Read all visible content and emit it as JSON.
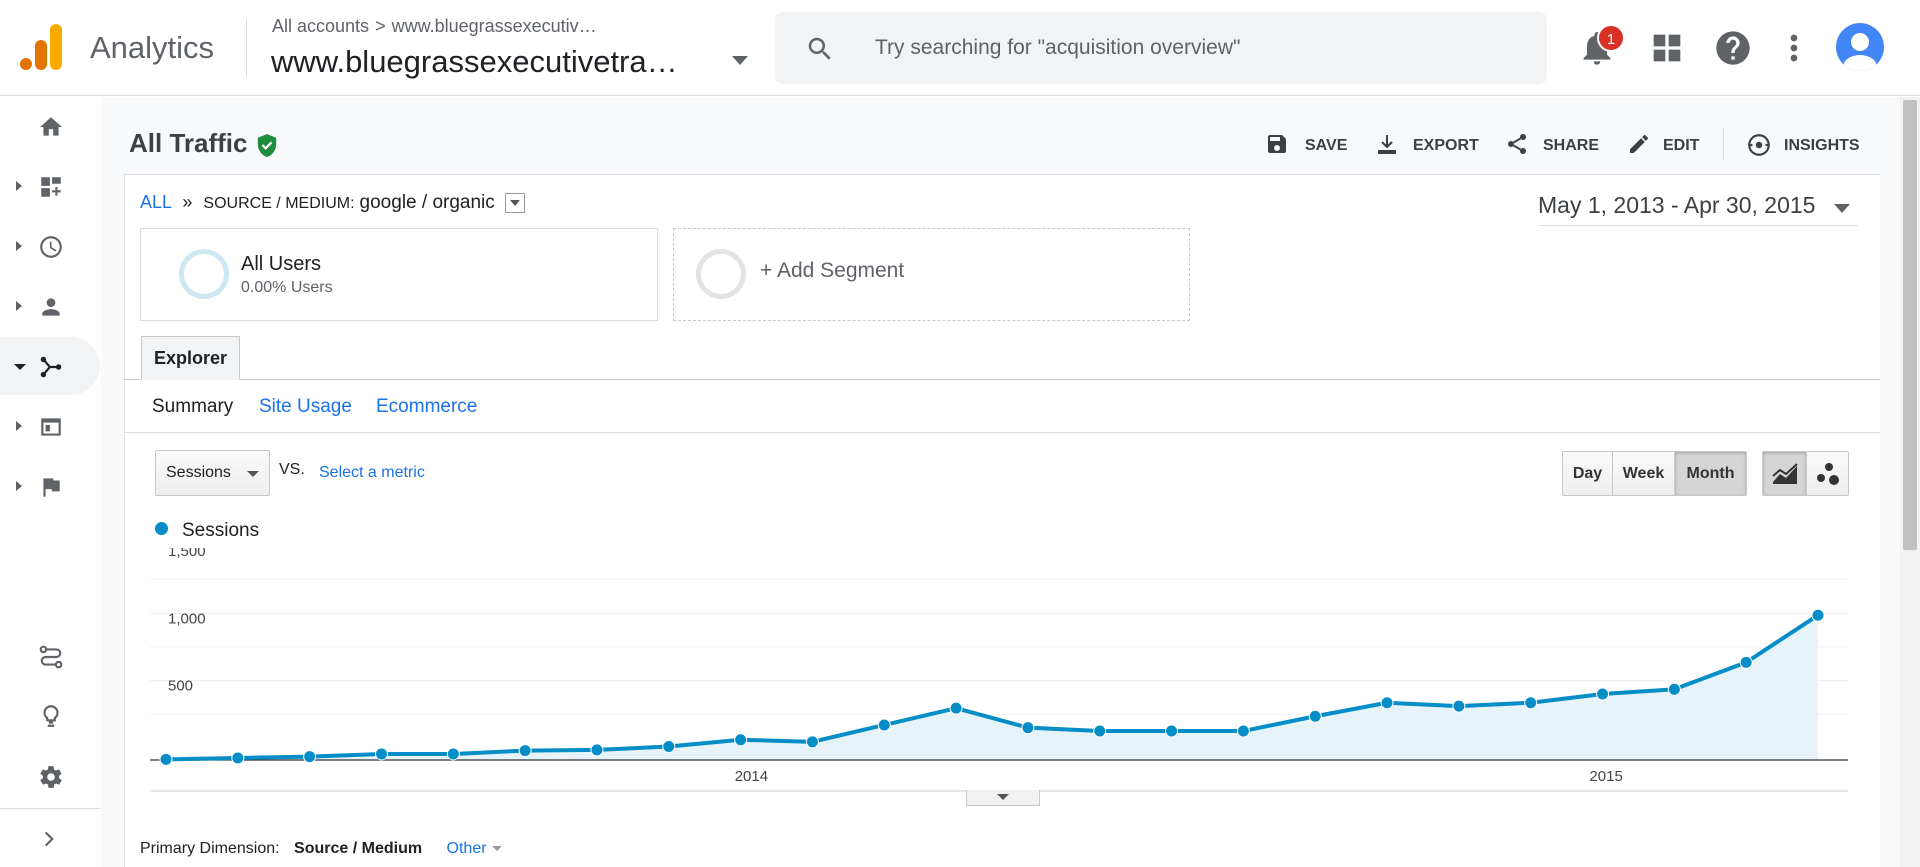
{
  "header": {
    "app_title": "Analytics",
    "breadcrumb_root": "All accounts",
    "breadcrumb_separator": ">",
    "breadcrumb_account": "www.bluegrassexecutiv…",
    "property_name": "www.bluegrassexecutivetra…",
    "search_placeholder": "Try searching for \"acquisition overview\"",
    "notification_count": "1",
    "icons": [
      "analytics-logo-icon",
      "search-icon",
      "bell-icon",
      "apps-grid-icon",
      "help-icon",
      "more-vert-icon",
      "account-avatar-icon"
    ]
  },
  "sidenav": {
    "items": [
      {
        "name": "home",
        "icon": "home-icon"
      },
      {
        "name": "customization",
        "icon": "dashboard-add-icon"
      },
      {
        "name": "realtime",
        "icon": "clock-icon"
      },
      {
        "name": "audience",
        "icon": "person-icon"
      },
      {
        "name": "acquisition",
        "icon": "acquisition-icon",
        "active": true
      },
      {
        "name": "behavior",
        "icon": "behavior-icon"
      },
      {
        "name": "conversions",
        "icon": "flag-icon"
      }
    ],
    "bottom_items": [
      {
        "name": "attribution",
        "icon": "attribution-icon"
      },
      {
        "name": "discover",
        "icon": "lightbulb-icon"
      },
      {
        "name": "admin",
        "icon": "gear-icon"
      },
      {
        "name": "expand",
        "icon": "chevron-right-icon"
      }
    ]
  },
  "page": {
    "title": "All Traffic",
    "actions": {
      "save": "SAVE",
      "export": "EXPORT",
      "share": "SHARE",
      "edit": "EDIT",
      "insights": "INSIGHTS"
    },
    "drill": {
      "all": "ALL",
      "sep": "»",
      "dimension": "SOURCE / MEDIUM:",
      "value": "google / organic"
    },
    "date_range": "May 1, 2013 - Apr 30, 2015",
    "segments": [
      {
        "name": "All Users",
        "sub": "0.00% Users"
      },
      {
        "name": "+ Add Segment"
      }
    ],
    "explorer_tab": "Explorer",
    "subtabs": [
      "Summary",
      "Site Usage",
      "Ecommerce"
    ],
    "metric_select": "Sessions",
    "vs_label": "VS.",
    "select_metric": "Select a metric",
    "granularity": [
      "Day",
      "Week",
      "Month"
    ],
    "granularity_selected": "Month",
    "chart_view_icons": [
      "line-chart-icon",
      "motion-chart-icon"
    ],
    "primary_dimension_label": "Primary Dimension:",
    "primary_dimension_value": "Source / Medium",
    "primary_dimension_other": "Other"
  },
  "colors": {
    "series": "#058dc7",
    "fill": "#e6f4fa",
    "link": "#1a73e8",
    "verified": "#1e8e3e",
    "badge": "#d93025"
  },
  "chart_data": {
    "type": "area",
    "legend": "Sessions",
    "series": [
      {
        "name": "Sessions",
        "values": [
          5,
          15,
          25,
          45,
          45,
          70,
          75,
          100,
          150,
          135,
          260,
          385,
          240,
          215,
          215,
          215,
          325,
          425,
          400,
          425,
          490,
          525,
          725,
          1075
        ]
      }
    ],
    "x": [
      "May 2013",
      "Jun 2013",
      "Jul 2013",
      "Aug 2013",
      "Sep 2013",
      "Oct 2013",
      "Nov 2013",
      "Dec 2013",
      "Jan 2014",
      "Feb 2014",
      "Mar 2014",
      "Apr 2014",
      "May 2014",
      "Jun 2014",
      "Jul 2014",
      "Aug 2014",
      "Sep 2014",
      "Oct 2014",
      "Nov 2014",
      "Dec 2014",
      "Jan 2015",
      "Feb 2015",
      "Mar 2015",
      "Apr 2015"
    ],
    "x_tick_labels": [
      {
        "label": "2014",
        "at": 8.15
      },
      {
        "label": "2015",
        "at": 20.05
      }
    ],
    "y_ticks": [
      "1,500",
      "1,000",
      "500"
    ],
    "ylim": [
      0,
      1500
    ],
    "grid": true,
    "legend_position": "top-left"
  }
}
